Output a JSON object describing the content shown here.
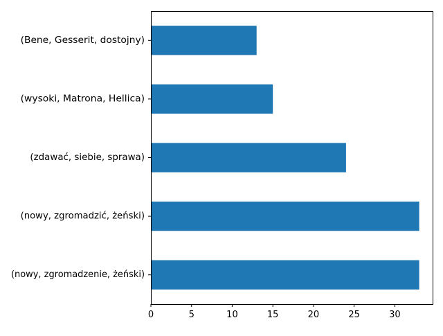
{
  "chart_data": {
    "type": "bar",
    "orientation": "horizontal",
    "title": "",
    "xlabel": "",
    "ylabel": "",
    "categories": [
      "(nowy, zgromadzenie, żeński)",
      "(nowy, zgromadzić, żeński)",
      "(zdawać, siebie, sprawa)",
      "(wysoki, Matrona, Hellica)",
      "(Bene, Gesserit, dostojny)"
    ],
    "values": [
      33,
      33,
      24,
      15,
      13
    ],
    "xlim": [
      0,
      34.65
    ],
    "xticks": [
      0,
      5,
      10,
      15,
      20,
      25,
      30
    ],
    "bar_color": "#1f77b4",
    "grid": false,
    "legend": false
  }
}
